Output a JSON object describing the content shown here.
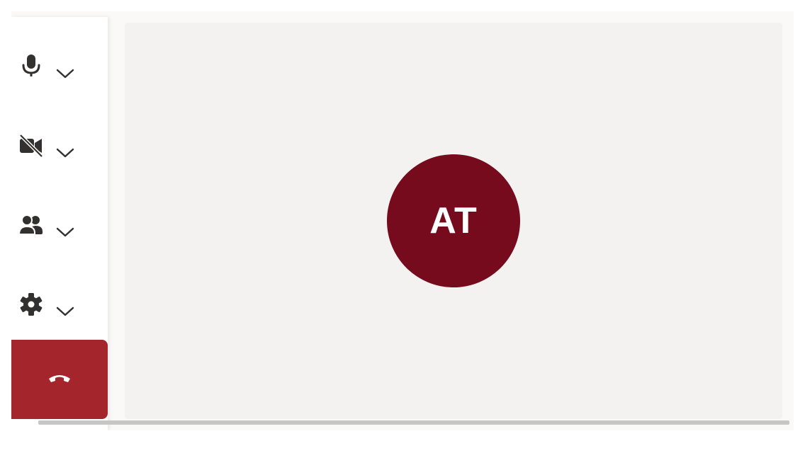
{
  "participant": {
    "initials": "AT",
    "avatar_color": "#750b1c"
  },
  "controls": [
    {
      "icon": "microphone-icon",
      "state": "on",
      "has_dropdown": true
    },
    {
      "icon": "camera-off-icon",
      "state": "off",
      "has_dropdown": true
    },
    {
      "icon": "people-icon",
      "state": "default",
      "has_dropdown": true
    },
    {
      "icon": "gear-icon",
      "state": "default",
      "has_dropdown": true
    },
    {
      "icon": "hang-up-icon",
      "state": "danger",
      "has_dropdown": false
    }
  ],
  "colors": {
    "hangup_background": "#a4262c",
    "stage_background": "#f3f2f1",
    "icon_color": "#323130"
  }
}
